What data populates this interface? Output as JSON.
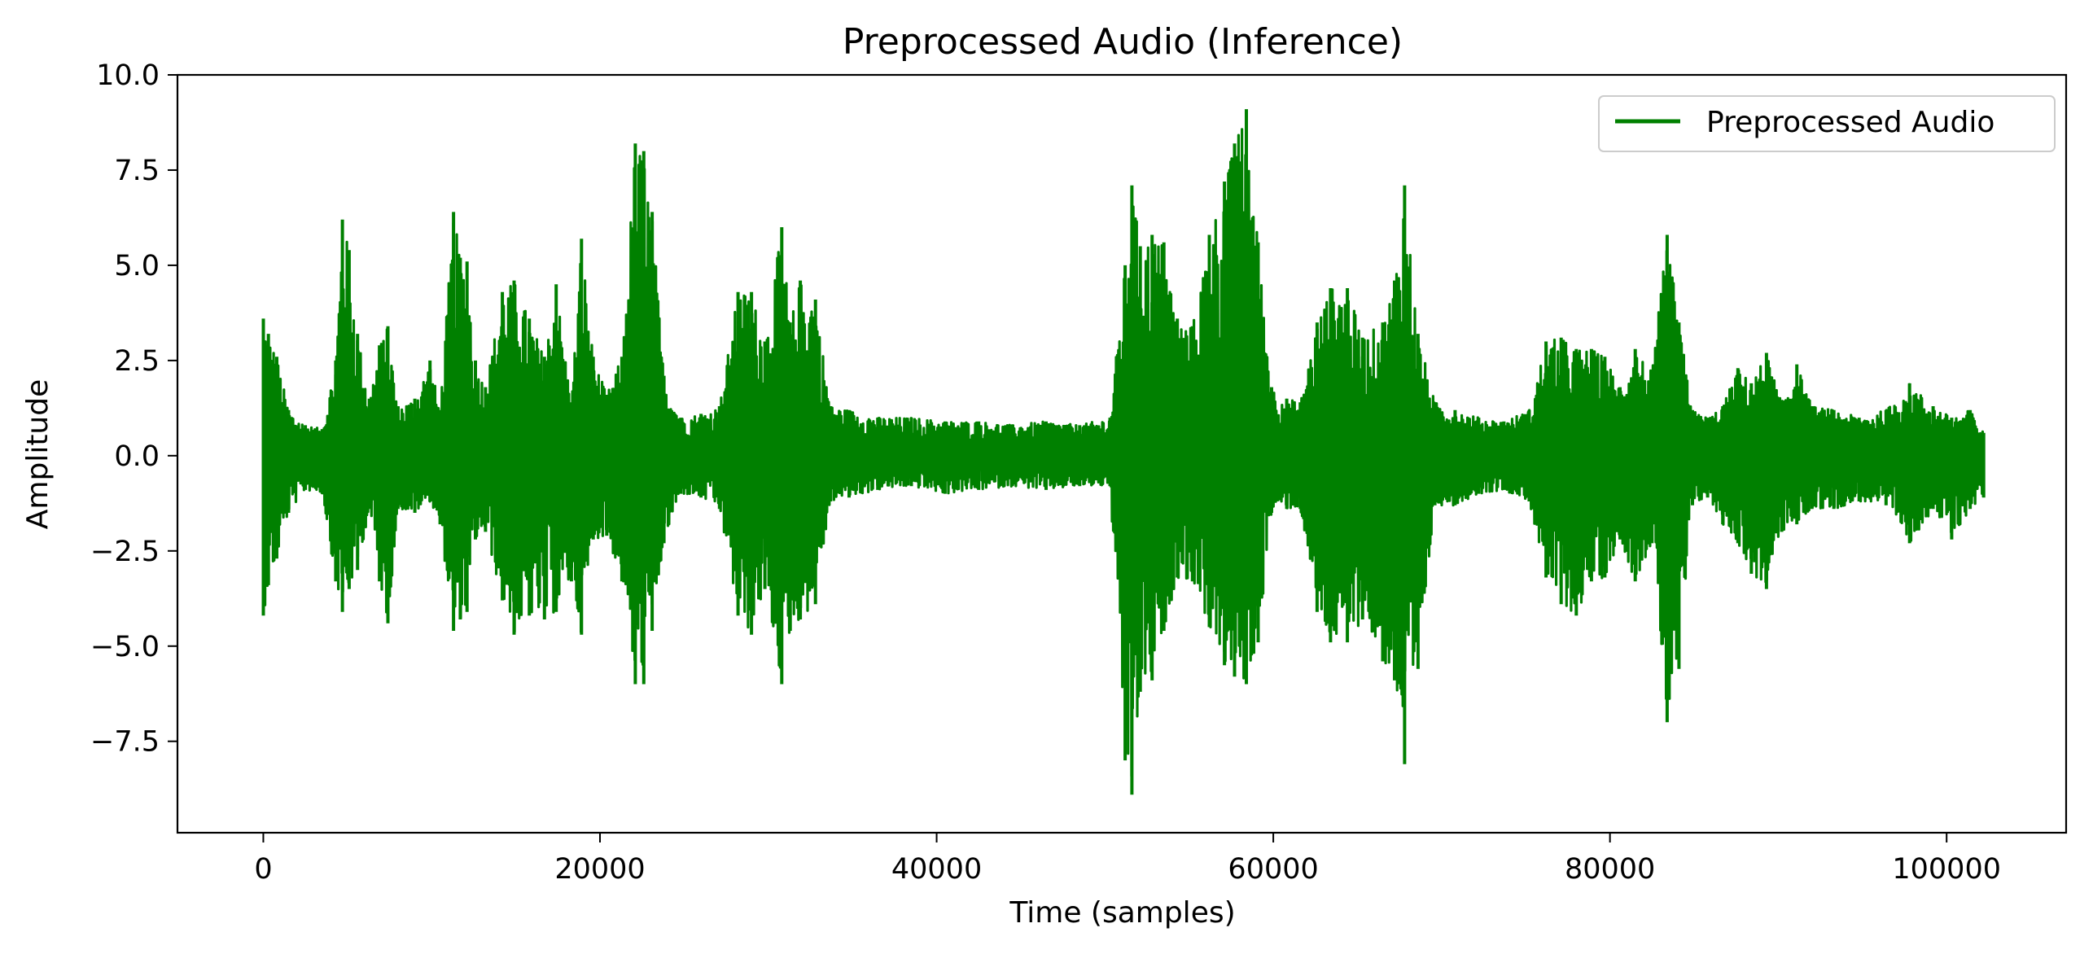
{
  "chart_data": {
    "type": "line",
    "title": "Preprocessed Audio (Inference)",
    "xlabel": "Time (samples)",
    "ylabel": "Amplitude",
    "xlim": [
      -5100,
      107100
    ],
    "ylim": [
      -9.9,
      10.0
    ],
    "xticks": [
      0,
      20000,
      40000,
      60000,
      80000,
      100000
    ],
    "xtick_labels": [
      "0",
      "20000",
      "40000",
      "60000",
      "80000",
      "100000"
    ],
    "yticks": [
      -7.5,
      -5.0,
      -2.5,
      0.0,
      2.5,
      5.0,
      7.5,
      10.0
    ],
    "ytick_labels": [
      "−7.5",
      "−5.0",
      "−2.5",
      "0.0",
      "2.5",
      "5.0",
      "7.5",
      "10.0"
    ],
    "grid": false,
    "legend_position": "top-right",
    "series": [
      {
        "name": "Preprocessed Audio",
        "color": "#008000",
        "x": [
          0,
          300,
          800,
          1500,
          2500,
          3500,
          4300,
          4700,
          5100,
          5600,
          6300,
          6900,
          7400,
          8000,
          9000,
          9900,
          10500,
          11300,
          11700,
          12100,
          12600,
          13200,
          14200,
          14900,
          15800,
          16700,
          17400,
          18300,
          18900,
          19600,
          20400,
          21300,
          22100,
          22600,
          23100,
          23800,
          24800,
          26000,
          27100,
          28200,
          29000,
          29800,
          30800,
          31300,
          31900,
          32800,
          33700,
          34800,
          36500,
          38500,
          40500,
          42500,
          44500,
          46500,
          48500,
          50300,
          51200,
          51600,
          52100,
          52800,
          53500,
          54300,
          55200,
          56200,
          57100,
          57700,
          58400,
          59100,
          59900,
          60800,
          61600,
          62600,
          63400,
          64400,
          65300,
          66500,
          67200,
          67800,
          68600,
          69600,
          70800,
          72200,
          73700,
          75200,
          76200,
          77100,
          78000,
          78900,
          79700,
          80600,
          81500,
          82500,
          83400,
          84100,
          84900,
          85800,
          86700,
          87600,
          88400,
          89300,
          90200,
          91100,
          92000,
          93300,
          94800,
          96400,
          97800,
          99200,
          100300,
          101400,
          102200
        ],
        "upper": [
          3.6,
          3.2,
          2.6,
          1.2,
          0.8,
          0.7,
          2.5,
          6.2,
          5.4,
          3.2,
          1.5,
          2.9,
          3.4,
          1.3,
          1.5,
          2.5,
          1.2,
          6.4,
          5.2,
          5.1,
          2.5,
          1.8,
          4.3,
          4.6,
          3.6,
          2.6,
          4.5,
          1.4,
          5.7,
          2.6,
          1.6,
          2.6,
          8.2,
          8.0,
          6.4,
          2.1,
          1.0,
          1.1,
          1.3,
          4.3,
          4.3,
          3.0,
          6.0,
          3.5,
          4.6,
          4.1,
          1.3,
          1.2,
          1.0,
          1.0,
          0.9,
          0.9,
          0.8,
          0.9,
          0.8,
          1.0,
          5.0,
          7.1,
          5.5,
          5.8,
          5.6,
          3.6,
          3.4,
          5.8,
          7.2,
          8.2,
          9.1,
          5.6,
          1.8,
          1.5,
          1.4,
          3.5,
          4.4,
          4.4,
          3.1,
          3.5,
          4.6,
          7.1,
          3.2,
          1.4,
          1.2,
          1.0,
          0.9,
          1.2,
          3.0,
          3.1,
          2.8,
          2.8,
          2.6,
          1.8,
          2.8,
          2.2,
          5.8,
          3.5,
          1.2,
          1.0,
          1.3,
          2.3,
          1.9,
          2.7,
          1.4,
          2.4,
          1.3,
          1.2,
          1.0,
          1.2,
          1.9,
          1.3,
          1.0,
          1.2,
          0.6
        ],
        "lower": [
          -4.2,
          -3.4,
          -2.7,
          -1.5,
          -0.9,
          -1.0,
          -3.3,
          -4.1,
          -3.5,
          -3.0,
          -1.4,
          -3.3,
          -4.4,
          -1.4,
          -1.5,
          -1.2,
          -1.8,
          -4.6,
          -4.3,
          -4.1,
          -2.2,
          -2.0,
          -3.8,
          -4.7,
          -4.2,
          -4.3,
          -4.1,
          -3.3,
          -4.7,
          -2.2,
          -2.1,
          -3.3,
          -6.0,
          -6.0,
          -4.6,
          -2.3,
          -1.0,
          -1.1,
          -1.4,
          -4.2,
          -4.7,
          -3.5,
          -6.0,
          -4.6,
          -4.3,
          -3.9,
          -1.2,
          -1.1,
          -0.9,
          -0.8,
          -1.0,
          -0.9,
          -0.8,
          -0.9,
          -0.8,
          -0.8,
          -8.0,
          -8.9,
          -6.2,
          -5.9,
          -4.6,
          -3.2,
          -3.3,
          -4.5,
          -5.5,
          -5.8,
          -6.0,
          -4.9,
          -1.5,
          -1.4,
          -1.4,
          -4.1,
          -4.9,
          -4.9,
          -4.3,
          -5.4,
          -5.9,
          -8.1,
          -5.6,
          -1.3,
          -1.3,
          -1.0,
          -0.9,
          -1.2,
          -3.2,
          -3.9,
          -4.2,
          -3.3,
          -3.2,
          -2.2,
          -3.3,
          -2.3,
          -7.0,
          -5.6,
          -1.3,
          -1.1,
          -1.8,
          -2.3,
          -3.1,
          -3.5,
          -2.0,
          -1.8,
          -1.4,
          -1.4,
          -1.2,
          -1.3,
          -2.3,
          -1.4,
          -2.2,
          -1.4,
          -1.1
        ]
      }
    ]
  }
}
